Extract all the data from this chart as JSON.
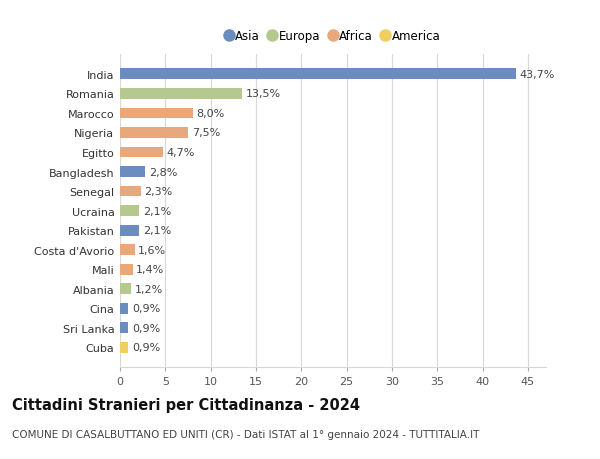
{
  "countries": [
    "India",
    "Romania",
    "Marocco",
    "Nigeria",
    "Egitto",
    "Bangladesh",
    "Senegal",
    "Ucraina",
    "Pakistan",
    "Costa d'Avorio",
    "Mali",
    "Albania",
    "Cina",
    "Sri Lanka",
    "Cuba"
  ],
  "values": [
    43.7,
    13.5,
    8.0,
    7.5,
    4.7,
    2.8,
    2.3,
    2.1,
    2.1,
    1.6,
    1.4,
    1.2,
    0.9,
    0.9,
    0.9
  ],
  "labels": [
    "43,7%",
    "13,5%",
    "8,0%",
    "7,5%",
    "4,7%",
    "2,8%",
    "2,3%",
    "2,1%",
    "2,1%",
    "1,6%",
    "1,4%",
    "1,2%",
    "0,9%",
    "0,9%",
    "0,9%"
  ],
  "bar_colors_list": [
    "#6b8cbf",
    "#b5c98e",
    "#e8a87c",
    "#e8a87c",
    "#e8a87c",
    "#6b8cbf",
    "#e8a87c",
    "#b5c98e",
    "#6b8cbf",
    "#e8a87c",
    "#e8a87c",
    "#b5c98e",
    "#6b8cbf",
    "#6b8cbf",
    "#f0cf60"
  ],
  "colors": {
    "Asia": "#6b8cbf",
    "Europa": "#b5c98e",
    "Africa": "#e8a87c",
    "America": "#f0cf60"
  },
  "legend_order": [
    "Asia",
    "Europa",
    "Africa",
    "America"
  ],
  "title": "Cittadini Stranieri per Cittadinanza - 2024",
  "subtitle": "COMUNE DI CASALBUTTANO ED UNITI (CR) - Dati ISTAT al 1° gennaio 2024 - TUTTITALIA.IT",
  "xlim": [
    0,
    47
  ],
  "xticks": [
    0,
    5,
    10,
    15,
    20,
    25,
    30,
    35,
    40,
    45
  ],
  "background_color": "#ffffff",
  "grid_color": "#d8d8d8",
  "bar_height": 0.55,
  "label_fontsize": 8,
  "tick_fontsize": 8,
  "title_fontsize": 10.5,
  "subtitle_fontsize": 7.5,
  "legend_fontsize": 8.5
}
